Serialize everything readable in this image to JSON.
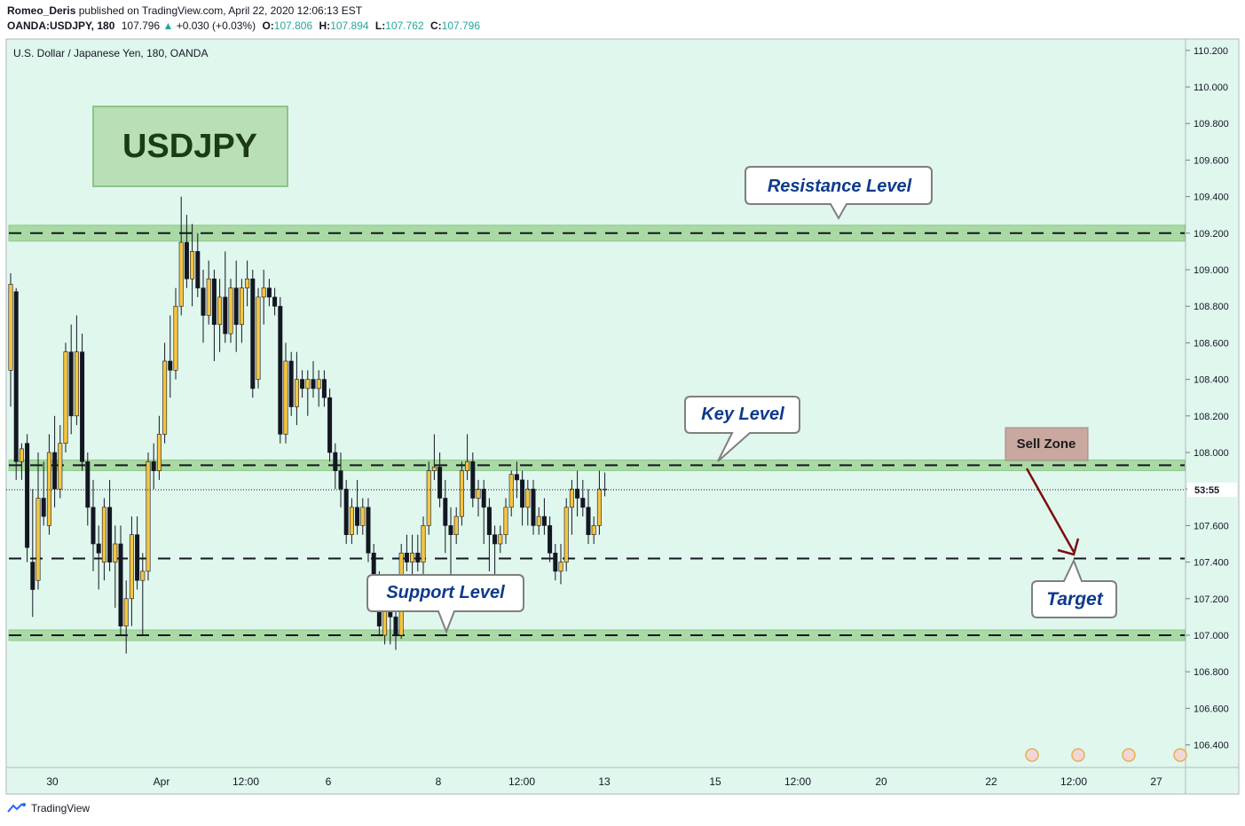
{
  "header": {
    "author": "Romeo_Deris",
    "published_text": "published on TradingView.com, April 22, 2020 12:06:13 EST",
    "symbol": "OANDA:USDJPY, 180",
    "last": "107.796",
    "change": "+0.030 (+0.03%)",
    "o_label": "O:",
    "o": "107.806",
    "h_label": "H:",
    "h": "107.894",
    "l_label": "L:",
    "l": "107.762",
    "c_label": "C:",
    "c": "107.796"
  },
  "chart_title": "U.S. Dollar / Japanese Yen, 180, OANDA",
  "badge": "USDJPY",
  "callouts": {
    "resistance": "Resistance Level",
    "key": "Key Level",
    "support": "Support Level",
    "sell_zone": "Sell Zone",
    "target": "Target"
  },
  "countdown": "53:55",
  "footer": {
    "brand": "TradingView"
  },
  "colors": {
    "background": "#e0f7ee",
    "zone": "#a9d9a4",
    "bull": "#f5c542",
    "bear": "#131722",
    "text_blue": "#0d3a8c",
    "sell_zone": "#c9a8a0",
    "arrow": "#7a0f0f"
  },
  "chart_data": {
    "type": "candlestick",
    "title": "U.S. Dollar / Japanese Yen, 180, OANDA",
    "ylim": [
      106.3,
      110.25
    ],
    "y_ticks": [
      "110.200",
      "110.000",
      "109.800",
      "109.600",
      "109.400",
      "109.200",
      "109.000",
      "108.800",
      "108.600",
      "108.400",
      "108.200",
      "108.000",
      "107.800",
      "107.600",
      "107.400",
      "107.200",
      "107.000",
      "106.800",
      "106.600",
      "106.400"
    ],
    "x_ticks": [
      "30",
      "Apr",
      "12:00",
      "6",
      "8",
      "12:00",
      "13",
      "15",
      "12:00",
      "20",
      "22",
      "12:00",
      "27"
    ],
    "levels": {
      "resistance": 109.2,
      "key_level": 107.93,
      "support": 107.0,
      "target": 107.42,
      "current_price": 107.796
    },
    "candles": [
      {
        "o": 108.45,
        "h": 108.98,
        "l": 108.25,
        "c": 108.92
      },
      {
        "o": 108.88,
        "h": 108.9,
        "l": 107.85,
        "c": 107.95
      },
      {
        "o": 107.95,
        "h": 108.05,
        "l": 107.85,
        "c": 108.02
      },
      {
        "o": 108.05,
        "h": 108.1,
        "l": 107.4,
        "c": 107.48
      },
      {
        "o": 107.4,
        "h": 107.8,
        "l": 107.1,
        "c": 107.25
      },
      {
        "o": 107.3,
        "h": 108.0,
        "l": 107.25,
        "c": 107.75
      },
      {
        "o": 107.75,
        "h": 107.95,
        "l": 107.6,
        "c": 107.65
      },
      {
        "o": 107.6,
        "h": 108.1,
        "l": 107.55,
        "c": 108.0
      },
      {
        "o": 108.0,
        "h": 108.2,
        "l": 107.7,
        "c": 107.8
      },
      {
        "o": 107.8,
        "h": 108.15,
        "l": 107.75,
        "c": 108.05
      },
      {
        "o": 108.05,
        "h": 108.6,
        "l": 108.0,
        "c": 108.55
      },
      {
        "o": 108.55,
        "h": 108.7,
        "l": 108.1,
        "c": 108.2
      },
      {
        "o": 108.2,
        "h": 108.75,
        "l": 108.15,
        "c": 108.55
      },
      {
        "o": 108.55,
        "h": 108.65,
        "l": 107.9,
        "c": 107.95
      },
      {
        "o": 107.95,
        "h": 108.0,
        "l": 107.6,
        "c": 107.7
      },
      {
        "o": 107.7,
        "h": 107.85,
        "l": 107.35,
        "c": 107.5
      },
      {
        "o": 107.5,
        "h": 107.6,
        "l": 107.25,
        "c": 107.45
      },
      {
        "o": 107.4,
        "h": 107.75,
        "l": 107.3,
        "c": 107.7
      },
      {
        "o": 107.7,
        "h": 107.85,
        "l": 107.35,
        "c": 107.4
      },
      {
        "o": 107.4,
        "h": 107.6,
        "l": 107.15,
        "c": 107.5
      },
      {
        "o": 107.5,
        "h": 107.6,
        "l": 107.0,
        "c": 107.05
      },
      {
        "o": 107.05,
        "h": 107.3,
        "l": 106.9,
        "c": 107.2
      },
      {
        "o": 107.2,
        "h": 107.65,
        "l": 107.05,
        "c": 107.55
      },
      {
        "o": 107.55,
        "h": 107.65,
        "l": 107.25,
        "c": 107.3
      },
      {
        "o": 107.3,
        "h": 107.45,
        "l": 107.0,
        "c": 107.35
      },
      {
        "o": 107.35,
        "h": 108.0,
        "l": 107.3,
        "c": 107.95
      },
      {
        "o": 107.95,
        "h": 108.05,
        "l": 107.8,
        "c": 107.9
      },
      {
        "o": 107.9,
        "h": 108.2,
        "l": 107.85,
        "c": 108.1
      },
      {
        "o": 108.1,
        "h": 108.6,
        "l": 108.05,
        "c": 108.5
      },
      {
        "o": 108.5,
        "h": 108.75,
        "l": 108.3,
        "c": 108.45
      },
      {
        "o": 108.45,
        "h": 108.9,
        "l": 108.4,
        "c": 108.8
      },
      {
        "o": 108.8,
        "h": 109.4,
        "l": 108.75,
        "c": 109.15
      },
      {
        "o": 109.15,
        "h": 109.3,
        "l": 108.9,
        "c": 108.95
      },
      {
        "o": 108.95,
        "h": 109.25,
        "l": 108.8,
        "c": 109.1
      },
      {
        "o": 109.1,
        "h": 109.2,
        "l": 108.85,
        "c": 108.9
      },
      {
        "o": 108.9,
        "h": 109.0,
        "l": 108.6,
        "c": 108.75
      },
      {
        "o": 108.75,
        "h": 109.05,
        "l": 108.7,
        "c": 108.95
      },
      {
        "o": 108.95,
        "h": 109.0,
        "l": 108.5,
        "c": 108.7
      },
      {
        "o": 108.7,
        "h": 108.95,
        "l": 108.55,
        "c": 108.85
      },
      {
        "o": 108.85,
        "h": 109.1,
        "l": 108.6,
        "c": 108.65
      },
      {
        "o": 108.65,
        "h": 108.95,
        "l": 108.6,
        "c": 108.9
      },
      {
        "o": 108.9,
        "h": 109.05,
        "l": 108.55,
        "c": 108.7
      },
      {
        "o": 108.7,
        "h": 108.95,
        "l": 108.6,
        "c": 108.9
      },
      {
        "o": 108.9,
        "h": 109.05,
        "l": 108.8,
        "c": 108.95
      },
      {
        "o": 108.95,
        "h": 109.0,
        "l": 108.3,
        "c": 108.35
      },
      {
        "o": 108.4,
        "h": 108.9,
        "l": 108.35,
        "c": 108.85
      },
      {
        "o": 108.85,
        "h": 109.0,
        "l": 108.7,
        "c": 108.9
      },
      {
        "o": 108.9,
        "h": 108.95,
        "l": 108.8,
        "c": 108.85
      },
      {
        "o": 108.85,
        "h": 108.9,
        "l": 108.75,
        "c": 108.8
      },
      {
        "o": 108.8,
        "h": 108.85,
        "l": 108.05,
        "c": 108.1
      },
      {
        "o": 108.1,
        "h": 108.6,
        "l": 108.05,
        "c": 108.5
      },
      {
        "o": 108.5,
        "h": 108.55,
        "l": 108.2,
        "c": 108.25
      },
      {
        "o": 108.25,
        "h": 108.55,
        "l": 108.15,
        "c": 108.4
      },
      {
        "o": 108.4,
        "h": 108.45,
        "l": 108.3,
        "c": 108.35
      },
      {
        "o": 108.35,
        "h": 108.45,
        "l": 108.2,
        "c": 108.4
      },
      {
        "o": 108.4,
        "h": 108.5,
        "l": 108.3,
        "c": 108.35
      },
      {
        "o": 108.35,
        "h": 108.45,
        "l": 108.25,
        "c": 108.4
      },
      {
        "o": 108.4,
        "h": 108.45,
        "l": 108.25,
        "c": 108.3
      },
      {
        "o": 108.3,
        "h": 108.35,
        "l": 107.95,
        "c": 108.0
      },
      {
        "o": 108.0,
        "h": 108.05,
        "l": 107.8,
        "c": 107.9
      },
      {
        "o": 107.9,
        "h": 108.0,
        "l": 107.7,
        "c": 107.8
      },
      {
        "o": 107.8,
        "h": 107.85,
        "l": 107.5,
        "c": 107.55
      },
      {
        "o": 107.55,
        "h": 107.75,
        "l": 107.5,
        "c": 107.7
      },
      {
        "o": 107.7,
        "h": 107.85,
        "l": 107.55,
        "c": 107.6
      },
      {
        "o": 107.6,
        "h": 107.75,
        "l": 107.55,
        "c": 107.7
      },
      {
        "o": 107.7,
        "h": 107.75,
        "l": 107.4,
        "c": 107.45
      },
      {
        "o": 107.45,
        "h": 107.5,
        "l": 107.2,
        "c": 107.3
      },
      {
        "o": 107.3,
        "h": 107.35,
        "l": 107.0,
        "c": 107.05
      },
      {
        "o": 107.0,
        "h": 107.25,
        "l": 106.95,
        "c": 107.2
      },
      {
        "o": 107.2,
        "h": 107.25,
        "l": 106.95,
        "c": 107.1
      },
      {
        "o": 107.1,
        "h": 107.2,
        "l": 106.92,
        "c": 107.0
      },
      {
        "o": 107.0,
        "h": 107.5,
        "l": 106.98,
        "c": 107.45
      },
      {
        "o": 107.45,
        "h": 107.55,
        "l": 107.35,
        "c": 107.4
      },
      {
        "o": 107.4,
        "h": 107.55,
        "l": 107.3,
        "c": 107.45
      },
      {
        "o": 107.45,
        "h": 107.55,
        "l": 107.35,
        "c": 107.4
      },
      {
        "o": 107.4,
        "h": 107.65,
        "l": 107.3,
        "c": 107.6
      },
      {
        "o": 107.6,
        "h": 107.95,
        "l": 107.55,
        "c": 107.9
      },
      {
        "o": 107.9,
        "h": 108.1,
        "l": 107.85,
        "c": 107.92
      },
      {
        "o": 107.92,
        "h": 108.0,
        "l": 107.7,
        "c": 107.75
      },
      {
        "o": 107.75,
        "h": 107.85,
        "l": 107.45,
        "c": 107.6
      },
      {
        "o": 107.6,
        "h": 107.7,
        "l": 107.2,
        "c": 107.55
      },
      {
        "o": 107.55,
        "h": 107.7,
        "l": 107.5,
        "c": 107.65
      },
      {
        "o": 107.65,
        "h": 107.95,
        "l": 107.6,
        "c": 107.9
      },
      {
        "o": 107.9,
        "h": 108.1,
        "l": 107.85,
        "c": 107.95
      },
      {
        "o": 107.95,
        "h": 108.0,
        "l": 107.7,
        "c": 107.75
      },
      {
        "o": 107.75,
        "h": 107.85,
        "l": 107.65,
        "c": 107.8
      },
      {
        "o": 107.8,
        "h": 107.85,
        "l": 107.5,
        "c": 107.7
      },
      {
        "o": 107.7,
        "h": 107.75,
        "l": 107.35,
        "c": 107.55
      },
      {
        "o": 107.55,
        "h": 107.6,
        "l": 107.3,
        "c": 107.5
      },
      {
        "o": 107.5,
        "h": 107.6,
        "l": 107.45,
        "c": 107.55
      },
      {
        "o": 107.55,
        "h": 107.75,
        "l": 107.5,
        "c": 107.7
      },
      {
        "o": 107.7,
        "h": 107.9,
        "l": 107.65,
        "c": 107.88
      },
      {
        "o": 107.88,
        "h": 107.95,
        "l": 107.75,
        "c": 107.85
      },
      {
        "o": 107.85,
        "h": 107.9,
        "l": 107.6,
        "c": 107.7
      },
      {
        "o": 107.7,
        "h": 107.85,
        "l": 107.6,
        "c": 107.8
      },
      {
        "o": 107.8,
        "h": 107.85,
        "l": 107.55,
        "c": 107.6
      },
      {
        "o": 107.6,
        "h": 107.7,
        "l": 107.55,
        "c": 107.65
      },
      {
        "o": 107.65,
        "h": 107.75,
        "l": 107.55,
        "c": 107.6
      },
      {
        "o": 107.6,
        "h": 107.65,
        "l": 107.4,
        "c": 107.45
      },
      {
        "o": 107.45,
        "h": 107.5,
        "l": 107.3,
        "c": 107.35
      },
      {
        "o": 107.35,
        "h": 107.5,
        "l": 107.28,
        "c": 107.4
      },
      {
        "o": 107.4,
        "h": 107.75,
        "l": 107.35,
        "c": 107.7
      },
      {
        "o": 107.7,
        "h": 107.85,
        "l": 107.55,
        "c": 107.8
      },
      {
        "o": 107.8,
        "h": 107.9,
        "l": 107.65,
        "c": 107.75
      },
      {
        "o": 107.75,
        "h": 107.85,
        "l": 107.65,
        "c": 107.7
      },
      {
        "o": 107.7,
        "h": 107.8,
        "l": 107.5,
        "c": 107.55
      },
      {
        "o": 107.55,
        "h": 107.65,
        "l": 107.5,
        "c": 107.6
      },
      {
        "o": 107.6,
        "h": 107.9,
        "l": 107.55,
        "c": 107.8
      },
      {
        "o": 107.8,
        "h": 107.89,
        "l": 107.76,
        "c": 107.8
      }
    ]
  }
}
